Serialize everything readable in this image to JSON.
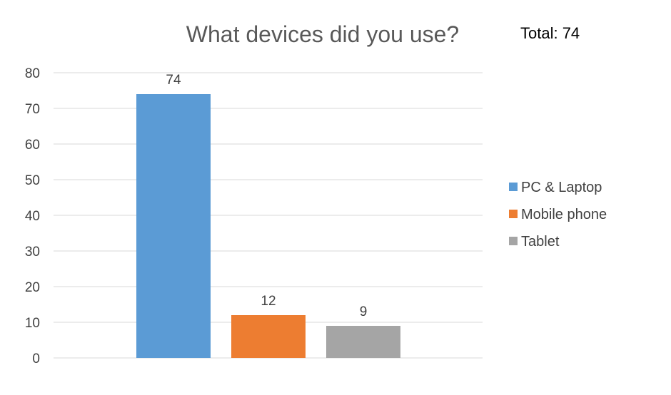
{
  "chart_data": {
    "type": "bar",
    "title": "What devices did you use?",
    "total_label": "Total: 74",
    "categories": [
      "PC & Laptop",
      "Mobile phone",
      "Tablet"
    ],
    "values": [
      74,
      12,
      9
    ],
    "colors": [
      "#5b9bd5",
      "#ed7d31",
      "#a5a5a5"
    ],
    "ylim": [
      0,
      80
    ],
    "yticks": [
      0,
      10,
      20,
      30,
      40,
      50,
      60,
      70,
      80
    ],
    "grid": true,
    "legend_position": "right",
    "data_labels": true
  }
}
